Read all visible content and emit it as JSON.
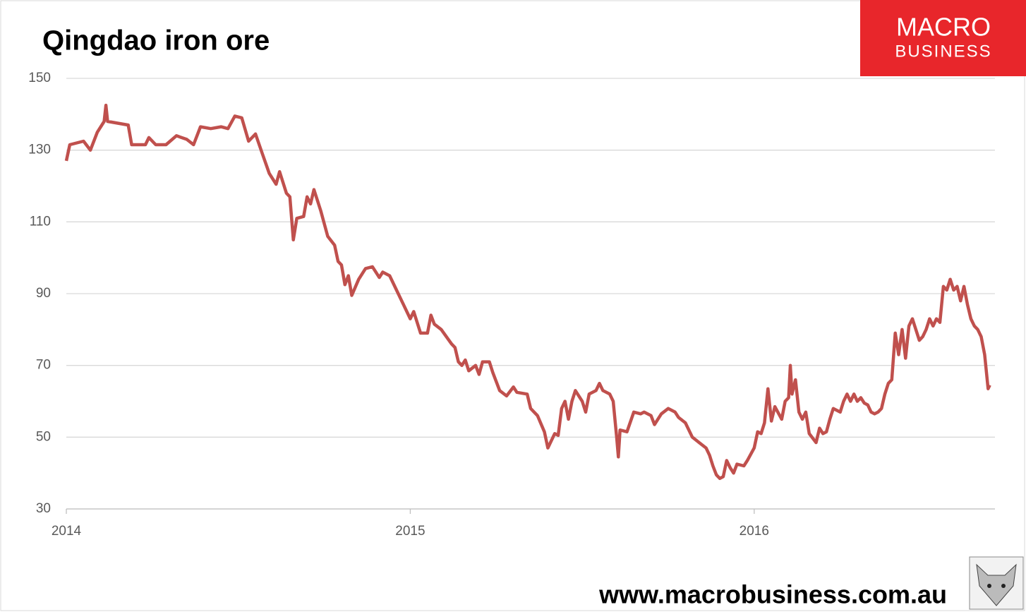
{
  "chart_data": {
    "type": "line",
    "title": "Qingdao iron ore",
    "x": [
      2014.0,
      2014.01,
      2014.05,
      2014.07,
      2014.09,
      2014.11,
      2014.115,
      2014.12,
      2014.18,
      2014.19,
      2014.23,
      2014.24,
      2014.26,
      2014.29,
      2014.32,
      2014.35,
      2014.37,
      2014.39,
      2014.42,
      2014.45,
      2014.47,
      2014.49,
      2014.51,
      2014.53,
      2014.55,
      2014.57,
      2014.59,
      2014.61,
      2014.62,
      2014.64,
      2014.65,
      2014.66,
      2014.67,
      2014.69,
      2014.7,
      2014.71,
      2014.72,
      2014.74,
      2014.76,
      2014.78,
      2014.79,
      2014.8,
      2014.81,
      2014.82,
      2014.83,
      2014.85,
      2014.87,
      2014.89,
      2014.91,
      2014.92,
      2014.94,
      2014.96,
      2014.98,
      2015.0,
      2015.01,
      2015.03,
      2015.05,
      2015.06,
      2015.07,
      2015.09,
      2015.12,
      2015.13,
      2015.14,
      2015.15,
      2015.16,
      2015.17,
      2015.19,
      2015.2,
      2015.21,
      2015.23,
      2015.24,
      2015.26,
      2015.28,
      2015.3,
      2015.31,
      2015.34,
      2015.35,
      2015.37,
      2015.39,
      2015.4,
      2015.42,
      2015.43,
      2015.44,
      2015.45,
      2015.46,
      2015.47,
      2015.48,
      2015.5,
      2015.51,
      2015.52,
      2015.54,
      2015.55,
      2015.56,
      2015.58,
      2015.59,
      2015.6,
      2015.605,
      2015.61,
      2015.63,
      2015.65,
      2015.67,
      2015.68,
      2015.7,
      2015.71,
      2015.73,
      2015.75,
      2015.77,
      2015.78,
      2015.8,
      2015.82,
      2015.84,
      2015.86,
      2015.87,
      2015.88,
      2015.89,
      2015.9,
      2015.91,
      2015.92,
      2015.93,
      2015.94,
      2015.95,
      2015.97,
      2015.98,
      2016.0,
      2016.01,
      2016.02,
      2016.03,
      2016.04,
      2016.05,
      2016.06,
      2016.08,
      2016.09,
      2016.1,
      2016.105,
      2016.11,
      2016.12,
      2016.13,
      2016.14,
      2016.15,
      2016.16,
      2016.18,
      2016.19,
      2016.2,
      2016.21,
      2016.22,
      2016.23,
      2016.25,
      2016.26,
      2016.27,
      2016.28,
      2016.29,
      2016.3,
      2016.31,
      2016.32,
      2016.33,
      2016.34,
      2016.35,
      2016.36,
      2016.37,
      2016.38,
      2016.39,
      2016.4,
      2016.41,
      2016.42,
      2016.43,
      2016.44,
      2016.45,
      2016.46,
      2016.47,
      2016.48,
      2016.49,
      2016.5,
      2016.51,
      2016.52,
      2016.53,
      2016.54,
      2016.55,
      2016.56,
      2016.57,
      2016.58,
      2016.59,
      2016.6,
      2016.61,
      2016.62,
      2016.63,
      2016.64,
      2016.65,
      2016.66,
      2016.67,
      2016.68,
      2016.685
    ],
    "series": [
      {
        "color": "#c0504d",
        "values": [
          127,
          131.5,
          132.5,
          130,
          135,
          138,
          142.5,
          138,
          137,
          131.5,
          131.5,
          133.5,
          131.5,
          131.5,
          134,
          133,
          131.5,
          136.5,
          136,
          136.5,
          136,
          139.5,
          139,
          132.5,
          134.5,
          129,
          123.5,
          120.5,
          124,
          118,
          117,
          105,
          111,
          111.5,
          117,
          115,
          119,
          113,
          106,
          103.5,
          99,
          98,
          92.5,
          95,
          89.5,
          94,
          97,
          97.5,
          94.5,
          96,
          95,
          91,
          87,
          83,
          85,
          79,
          79,
          84,
          81.5,
          80,
          76,
          75,
          71,
          70,
          71.5,
          68.5,
          70,
          67.5,
          71,
          71,
          68,
          63,
          61.5,
          64,
          62.5,
          62,
          58,
          56,
          51.5,
          47,
          51,
          50.5,
          58,
          60,
          55,
          60,
          63,
          60,
          57,
          62,
          63,
          65,
          63,
          62,
          60,
          50,
          44.5,
          52,
          51.5,
          57,
          56.5,
          57,
          56,
          53.5,
          56.5,
          58,
          57,
          55.5,
          54,
          50,
          48.5,
          47,
          45,
          42,
          39.5,
          38.5,
          39,
          43.5,
          41.5,
          40,
          42.5,
          42,
          43.5,
          47,
          51.5,
          51,
          54,
          63.5,
          54.5,
          58.5,
          55,
          60,
          61,
          70,
          62,
          66,
          57,
          55,
          57,
          51,
          48.5,
          52.5,
          51,
          51.5,
          55,
          58,
          57,
          60,
          62,
          60,
          62,
          60,
          61,
          59.5,
          59,
          57,
          56.5,
          57,
          58,
          62,
          65,
          66,
          79,
          73,
          80,
          72,
          81,
          83,
          80,
          77,
          78,
          80,
          83,
          81,
          83,
          82,
          92,
          91,
          94,
          91,
          92,
          88,
          92,
          87,
          83,
          81,
          80,
          78,
          73,
          63.5,
          64.5
        ]
      }
    ],
    "xlim": [
      2014,
      2016.7
    ],
    "xticks": [
      2014,
      2015,
      2016
    ],
    "ylim": [
      30,
      150
    ],
    "yticks": [
      30,
      50,
      70,
      90,
      110,
      130,
      150
    ],
    "grid": true
  },
  "logo": {
    "line1": "MACRO",
    "line2": "BUSINESS"
  },
  "footer_url": "www.macrobusiness.com.au"
}
